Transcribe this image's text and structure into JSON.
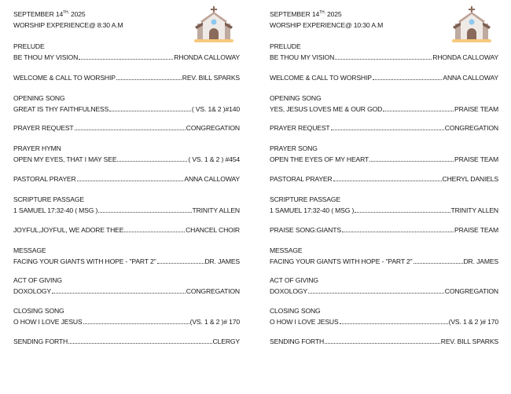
{
  "bulletins": [
    {
      "date_prefix": "SEPTEMBER 14",
      "date_sup": "TH,",
      "date_year": " 2025",
      "service": "WORSHIP EXPERIENCE@ 8:30 A.M",
      "icon": "church-icon",
      "items": [
        {
          "heading": "PRELUDE",
          "title": "BE THOU MY VISION",
          "detail": "RHONDA CALLOWAY"
        },
        {
          "title": "WELCOME & CALL TO WORSHIP",
          "detail": "REV. BILL SPARKS"
        },
        {
          "heading": "OPENING SONG",
          "title": "GREAT IS THY FAITHFULNESS",
          "detail": "( VS. 1& 2  )#140"
        },
        {
          "title": "PRAYER REQUEST",
          "detail": "CONGREGATION"
        },
        {
          "heading": "PRAYER HYMN",
          "title": "OPEN MY EYES, THAT I MAY SEE",
          "detail": "( VS. 1 & 2  ) #454"
        },
        {
          "title": "PASTORAL PRAYER",
          "detail": "ANNA CALLOWAY"
        },
        {
          "heading": "SCRIPTURE PASSAGE",
          "title": "1 SAMUEL 17:32-40 ( MSG )",
          "detail": "TRINITY ALLEN"
        },
        {
          "title": "JOYFUL,JOYFUL, WE ADORE THEE",
          "detail": "CHANCEL CHOIR"
        },
        {
          "heading": "MESSAGE",
          "title": "FACING YOUR GIANTS WITH HOPE - \"PART 2\"",
          "detail": "DR. JAMES"
        },
        {
          "heading": "ACT OF GIVING",
          "title": "DOXOLOGY",
          "detail": "CONGREGATION"
        },
        {
          "heading": "CLOSING SONG",
          "title": "O HOW I LOVE JESUS",
          "detail": "(VS. 1 & 2  )# 170"
        },
        {
          "title": "SENDING FORTH",
          "detail": "CLERGY"
        }
      ]
    },
    {
      "date_prefix": "SEPTEMBER 14",
      "date_sup": "TH,",
      "date_year": " 2025",
      "service": "WORSHIP EXPERIENCE@ 10:30 A.M",
      "icon": "church-icon",
      "items": [
        {
          "heading": "PRELUDE",
          "title": "BE THOU MY VISION",
          "detail": "RHONDA CALLOWAY"
        },
        {
          "title": "WELCOME & CALL TO WORSHIP",
          "detail": "ANNA CALLOWAY"
        },
        {
          "heading": "OPENING SONG",
          "title": "YES, JESUS LOVES ME & OUR GOD",
          "detail": "PRAISE TEAM"
        },
        {
          "title": "PRAYER REQUEST",
          "detail": "CONGREGATION"
        },
        {
          "heading": "PRAYER SONG",
          "title": "OPEN THE EYES OF MY HEART",
          "detail": "PRAISE TEAM"
        },
        {
          "title": "PASTORAL PRAYER",
          "detail": "CHERYL DANIELS"
        },
        {
          "heading": "SCRIPTURE PASSAGE",
          "title": "1 SAMUEL 17:32-40 ( MSG )",
          "detail": "TRINITY ALLEN"
        },
        {
          "title": "PRAISE SONG:GIANTS",
          "detail": "PRAISE TEAM"
        },
        {
          "heading": "MESSAGE",
          "title": "FACING YOUR GIANTS WITH HOPE - \"PART 2\"",
          "detail": "DR. JAMES"
        },
        {
          "heading": "ACT OF GIVING",
          "title": "DOXOLOGY",
          "detail": "CONGREGATION"
        },
        {
          "heading": "CLOSING SONG",
          "title": "O HOW I LOVE JESUS",
          "detail": "(VS. 1 & 2  )# 170"
        },
        {
          "title": "SENDING FORTH",
          "detail": "REV. BILL SPARKS"
        }
      ]
    }
  ]
}
